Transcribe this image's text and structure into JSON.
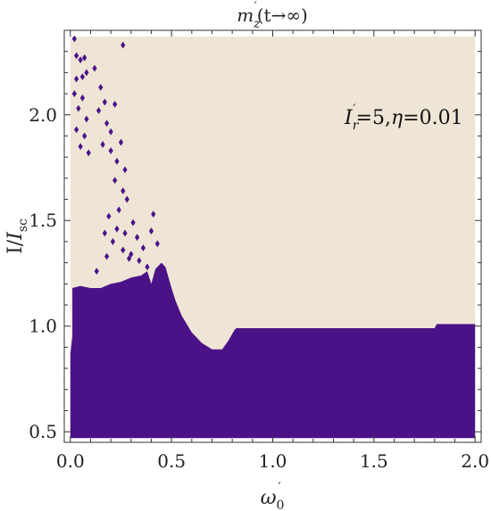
{
  "colors": {
    "background_region": "#efe5d6",
    "filled_region": "#4b1287",
    "frame": "#333333"
  },
  "chart_data": {
    "type": "heatmap",
    "title": "m_z'(t→∞)",
    "xlabel": "ω0'",
    "ylabel": "I/Isc",
    "annotation": "I_r'=5, η=0.01",
    "xlim": [
      -0.03,
      2.03
    ],
    "ylim": [
      0.45,
      2.4
    ],
    "data_extent": {
      "x": [
        0.0,
        2.0
      ],
      "y": [
        0.47,
        2.37
      ]
    },
    "xticks": [
      "0.0",
      "0.5",
      "1.0",
      "1.5",
      "2.0"
    ],
    "yticks": [
      "0.5",
      "1.0",
      "1.5",
      "2.0"
    ],
    "tick_values_x": [
      0.0,
      0.5,
      1.0,
      1.5,
      2.0
    ],
    "tick_values_y": [
      0.5,
      1.0,
      1.5,
      2.0
    ],
    "boundary": [
      [
        0.0,
        0.87
      ],
      [
        0.01,
        0.95
      ],
      [
        0.01,
        1.18
      ],
      [
        0.05,
        1.19
      ],
      [
        0.1,
        1.18
      ],
      [
        0.15,
        1.18
      ],
      [
        0.2,
        1.2
      ],
      [
        0.25,
        1.21
      ],
      [
        0.3,
        1.23
      ],
      [
        0.35,
        1.24
      ],
      [
        0.38,
        1.26
      ],
      [
        0.4,
        1.2
      ],
      [
        0.42,
        1.27
      ],
      [
        0.45,
        1.3
      ],
      [
        0.47,
        1.28
      ],
      [
        0.5,
        1.18
      ],
      [
        0.52,
        1.12
      ],
      [
        0.55,
        1.05
      ],
      [
        0.6,
        0.97
      ],
      [
        0.65,
        0.92
      ],
      [
        0.7,
        0.89
      ],
      [
        0.75,
        0.89
      ],
      [
        0.78,
        0.93
      ],
      [
        0.81,
        0.98
      ],
      [
        0.82,
        0.99
      ],
      [
        1.0,
        0.99
      ],
      [
        1.5,
        0.99
      ],
      [
        1.8,
        0.99
      ],
      [
        1.81,
        1.01
      ],
      [
        2.0,
        1.01
      ]
    ],
    "islands": [
      [
        0.02,
        2.36
      ],
      [
        0.03,
        2.28
      ],
      [
        0.05,
        2.26
      ],
      [
        0.07,
        2.27
      ],
      [
        0.03,
        2.17
      ],
      [
        0.06,
        2.18
      ],
      [
        0.08,
        2.2
      ],
      [
        0.02,
        2.1
      ],
      [
        0.06,
        2.08
      ],
      [
        0.04,
        2.03
      ],
      [
        0.08,
        1.98
      ],
      [
        0.03,
        1.93
      ],
      [
        0.07,
        1.9
      ],
      [
        0.05,
        1.85
      ],
      [
        0.09,
        1.82
      ],
      [
        0.12,
        2.22
      ],
      [
        0.15,
        2.13
      ],
      [
        0.14,
        2.02
      ],
      [
        0.17,
        2.06
      ],
      [
        0.18,
        1.96
      ],
      [
        0.2,
        1.92
      ],
      [
        0.22,
        2.05
      ],
      [
        0.16,
        1.86
      ],
      [
        0.2,
        1.83
      ],
      [
        0.23,
        1.78
      ],
      [
        0.25,
        1.87
      ],
      [
        0.26,
        2.33
      ],
      [
        0.27,
        1.74
      ],
      [
        0.22,
        1.69
      ],
      [
        0.26,
        1.64
      ],
      [
        0.28,
        1.6
      ],
      [
        0.24,
        1.55
      ],
      [
        0.19,
        1.52
      ],
      [
        0.23,
        1.46
      ],
      [
        0.27,
        1.44
      ],
      [
        0.31,
        1.49
      ],
      [
        0.33,
        1.42
      ],
      [
        0.21,
        1.4
      ],
      [
        0.26,
        1.36
      ],
      [
        0.3,
        1.34
      ],
      [
        0.34,
        1.31
      ],
      [
        0.36,
        1.37
      ],
      [
        0.4,
        1.45
      ],
      [
        0.41,
        1.53
      ],
      [
        0.43,
        1.39
      ],
      [
        0.17,
        1.44
      ],
      [
        0.13,
        1.26
      ],
      [
        0.29,
        1.32
      ],
      [
        0.38,
        1.28
      ],
      [
        0.18,
        1.33
      ]
    ]
  }
}
